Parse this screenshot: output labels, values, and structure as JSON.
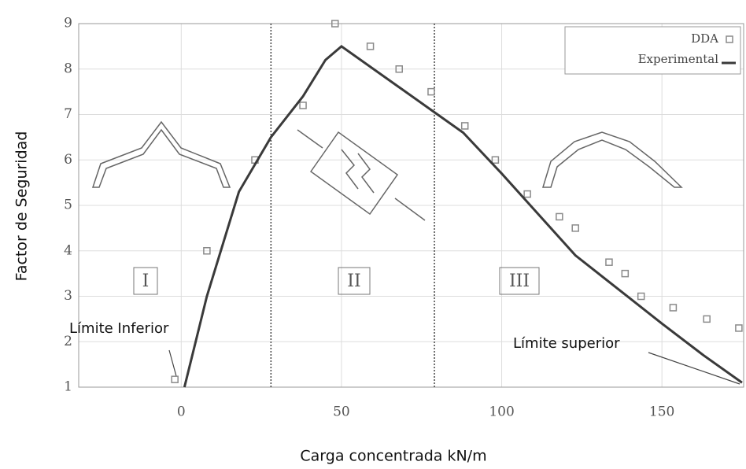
{
  "chart_data": {
    "type": "scatter",
    "xlabel": "Carga concentrada kN/m",
    "ylabel": "Factor de Seguridad",
    "xlim": [
      -32,
      175.5
    ],
    "ylim": [
      1,
      9
    ],
    "xticks": [
      0,
      50,
      100,
      150
    ],
    "yticks": [
      1,
      2,
      3,
      4,
      5,
      6,
      7,
      8,
      9
    ],
    "grid": true,
    "legend": "upper right",
    "vlines": [
      28,
      79
    ],
    "regions": [
      "I",
      "II",
      "III"
    ],
    "annotations": [
      "Límite Inferior",
      "Límite superior"
    ],
    "series": [
      {
        "name": "DDA",
        "kind": "marker",
        "color": "#8a8a8a",
        "x": [
          -2,
          8,
          23,
          38,
          48,
          59,
          68,
          78,
          88.5,
          98,
          108,
          118,
          123,
          133.5,
          138.5,
          143.5,
          153.5,
          164,
          174
        ],
        "values": [
          1.17,
          4,
          6,
          7.2,
          9,
          8.5,
          8,
          7.5,
          6.75,
          6,
          5.25,
          4.75,
          4.5,
          3.75,
          3.5,
          3,
          2.75,
          2.5,
          2.3
        ]
      },
      {
        "name": "Experimental",
        "kind": "line",
        "color": "#3a3a3a",
        "x": [
          1,
          8,
          18,
          28,
          38,
          45,
          50,
          78,
          88,
          100,
          123,
          150,
          163,
          175
        ],
        "values": [
          1,
          3,
          5.3,
          6.5,
          7.4,
          8.2,
          8.5,
          7.1,
          6.6,
          5.7,
          3.9,
          2.4,
          1.7,
          1.1
        ]
      }
    ]
  }
}
